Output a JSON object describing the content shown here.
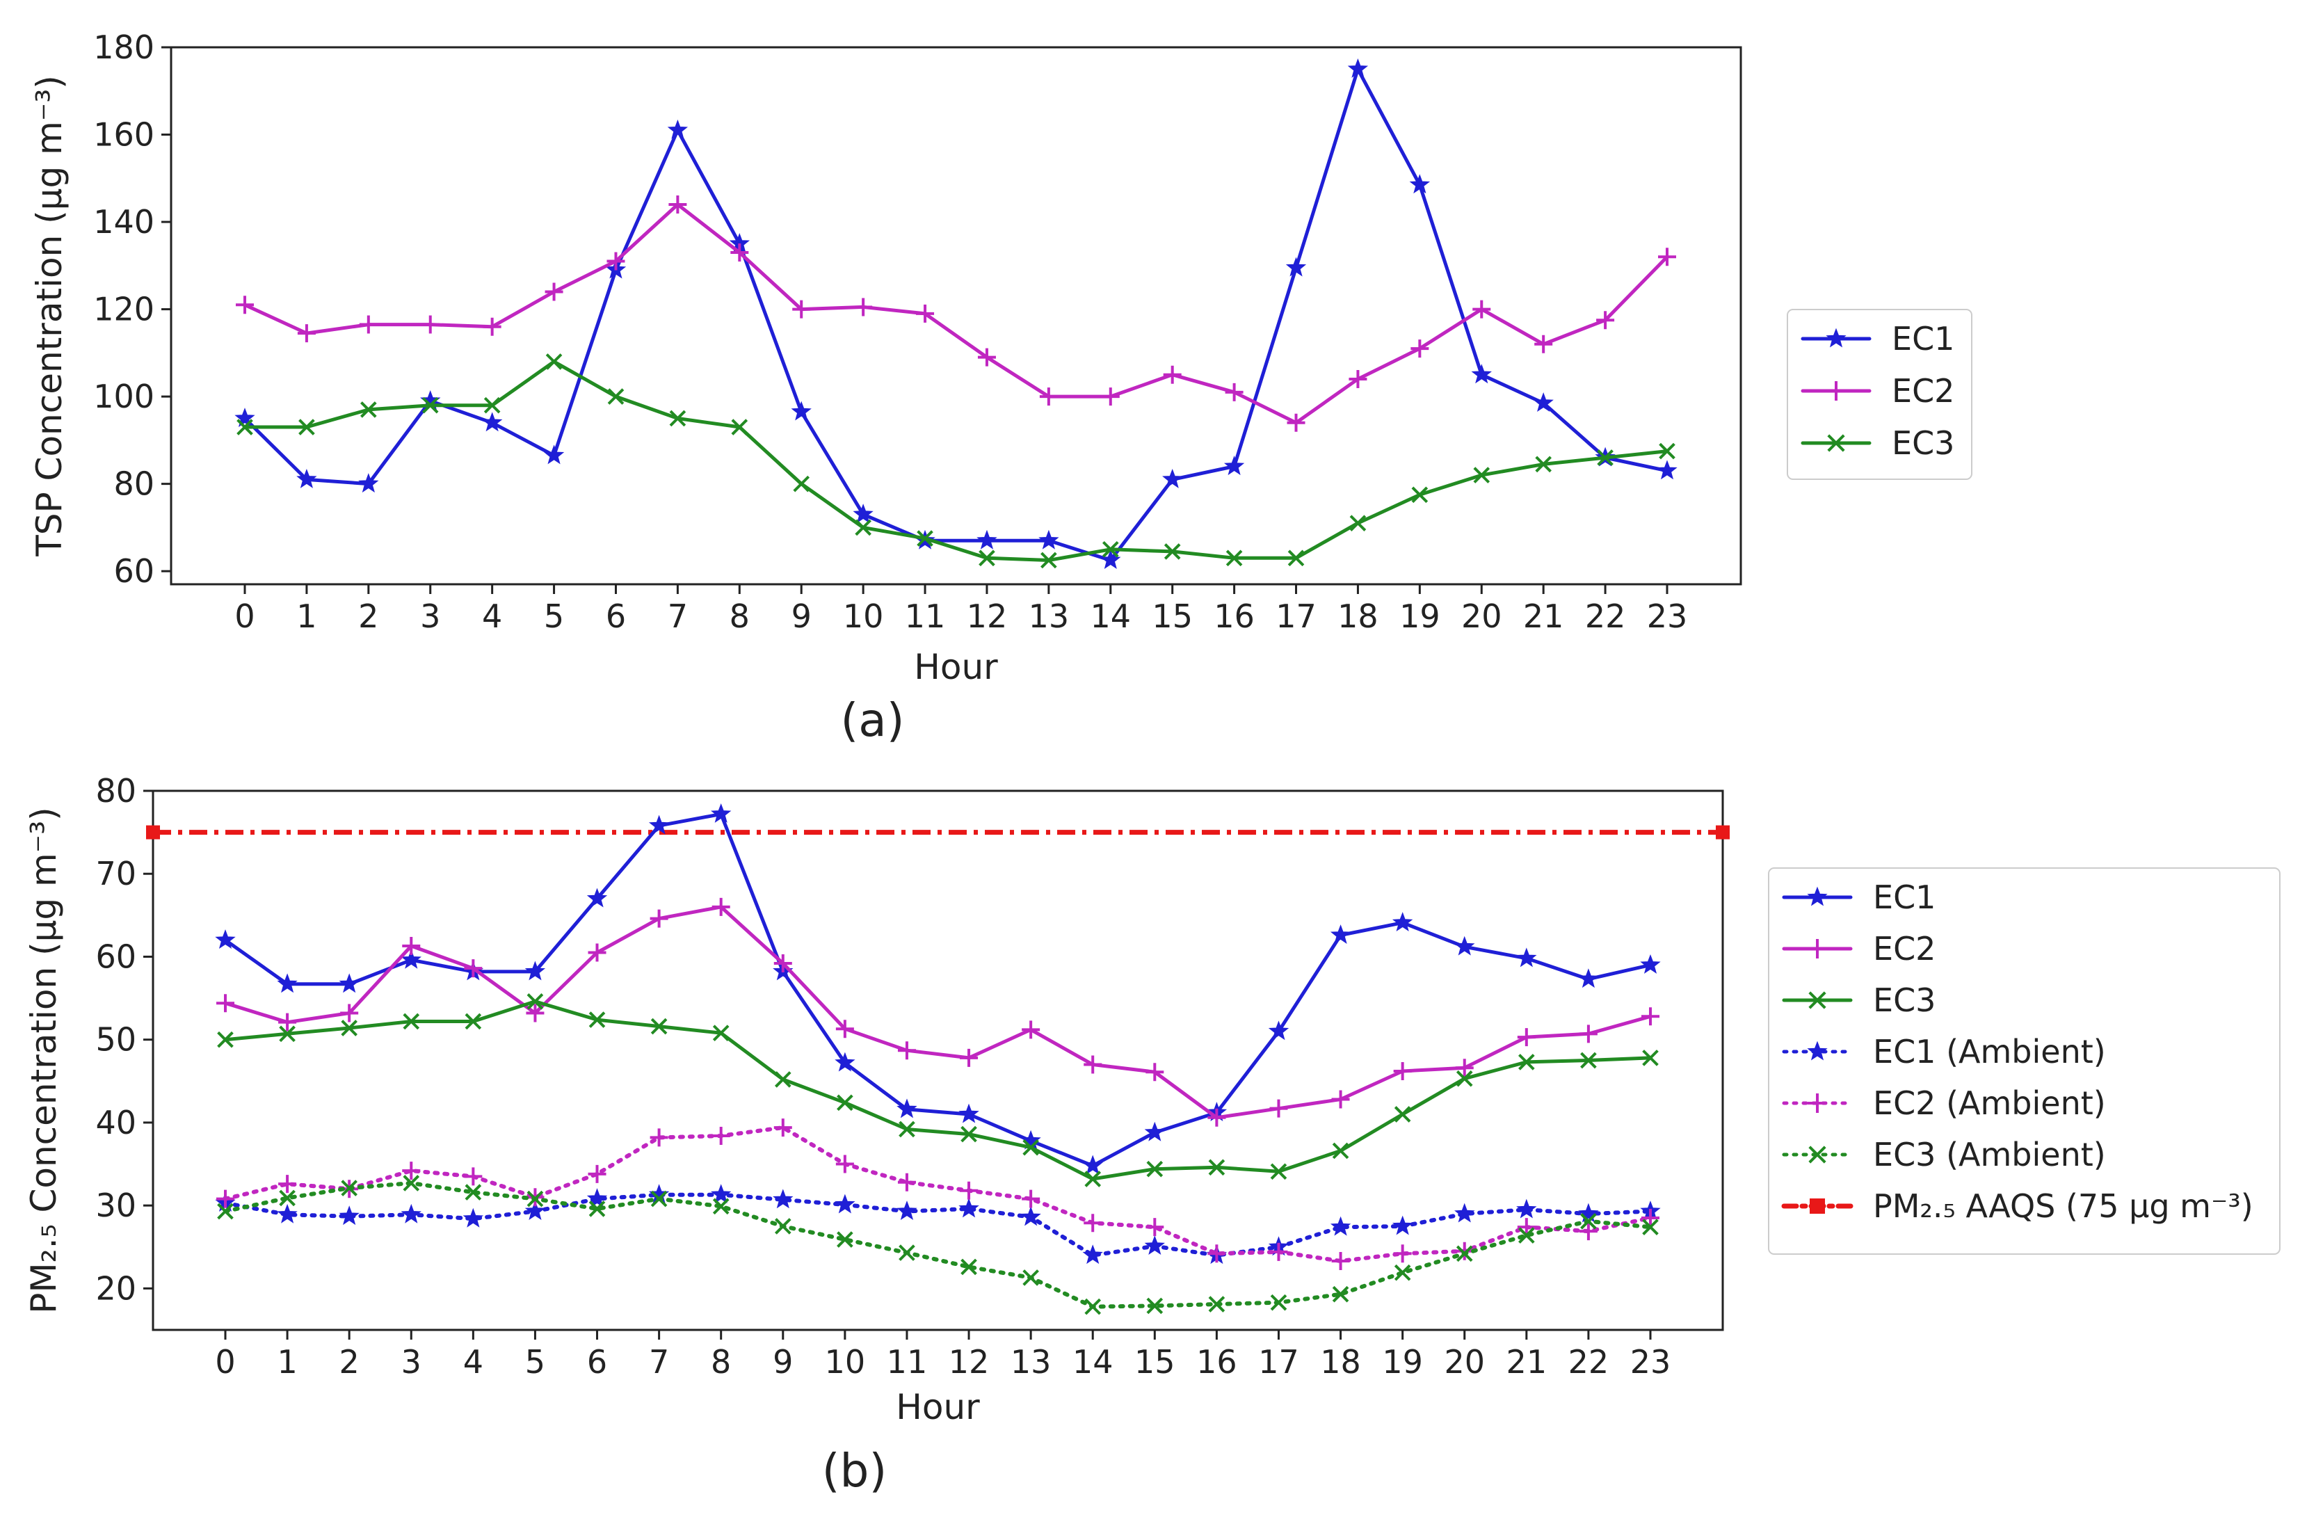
{
  "chart_data": [
    {
      "type": "line",
      "panel_label": "(a)",
      "xlabel": "Hour",
      "ylabel": "TSP Concentration (μg m⁻³)",
      "ylim": [
        57,
        180
      ],
      "yticks": [
        60,
        80,
        100,
        120,
        140,
        160,
        180
      ],
      "x": [
        0,
        1,
        2,
        3,
        4,
        5,
        6,
        7,
        8,
        9,
        10,
        11,
        12,
        13,
        14,
        15,
        16,
        17,
        18,
        19,
        20,
        21,
        22,
        23
      ],
      "legend_position": "right",
      "series": [
        {
          "name": "EC1",
          "color": "#1f1fd6",
          "marker": "star",
          "linestyle": "solid",
          "values": [
            95,
            81,
            80,
            99,
            94,
            86.5,
            129,
            161,
            135,
            96.5,
            73,
            67,
            67,
            67,
            62.5,
            81,
            84,
            129.5,
            175,
            148.5,
            105,
            98.5,
            86,
            83
          ]
        },
        {
          "name": "EC2",
          "color": "#c026c0",
          "marker": "plus",
          "linestyle": "solid",
          "values": [
            121,
            114.5,
            116.5,
            116.5,
            116,
            124,
            131,
            144,
            133,
            120,
            120.5,
            119,
            109,
            100,
            100,
            105,
            101,
            94,
            104,
            111,
            120,
            112,
            117.5,
            132
          ]
        },
        {
          "name": "EC3",
          "color": "#228b22",
          "marker": "x",
          "linestyle": "solid",
          "values": [
            93,
            93,
            97,
            98,
            98,
            108,
            100,
            95,
            93,
            80,
            70,
            67.5,
            63,
            62.5,
            65,
            64.5,
            63,
            63,
            71,
            77.5,
            82,
            84.5,
            86,
            87.5
          ]
        }
      ]
    },
    {
      "type": "line",
      "panel_label": "(b)",
      "xlabel": "Hour",
      "ylabel": "PM₂.₅ Concentration (μg m⁻³)",
      "ylim": [
        15,
        80
      ],
      "yticks": [
        20,
        30,
        40,
        50,
        60,
        70,
        80
      ],
      "x": [
        0,
        1,
        2,
        3,
        4,
        5,
        6,
        7,
        8,
        9,
        10,
        11,
        12,
        13,
        14,
        15,
        16,
        17,
        18,
        19,
        20,
        21,
        22,
        23
      ],
      "legend_position": "right",
      "series": [
        {
          "name": "EC1",
          "color": "#1f1fd6",
          "marker": "star",
          "linestyle": "solid",
          "values": [
            62,
            56.7,
            56.7,
            59.6,
            58.2,
            58.2,
            67,
            75.8,
            77.2,
            58.2,
            47.2,
            41.6,
            41,
            37.8,
            34.8,
            38.8,
            41.2,
            51,
            62.6,
            64.1,
            61.2,
            59.8,
            57.3,
            59
          ]
        },
        {
          "name": "EC2",
          "color": "#c026c0",
          "marker": "plus",
          "linestyle": "solid",
          "values": [
            54.4,
            52.1,
            53.2,
            61.3,
            58.6,
            53.2,
            60.5,
            64.6,
            66,
            59.2,
            51.3,
            48.7,
            47.8,
            51.2,
            47,
            46.1,
            40.6,
            41.7,
            42.8,
            46.2,
            46.6,
            50.3,
            50.7,
            52.8
          ]
        },
        {
          "name": "EC3",
          "color": "#228b22",
          "marker": "x",
          "linestyle": "solid",
          "values": [
            50,
            50.7,
            51.4,
            52.2,
            52.2,
            54.6,
            52.4,
            51.6,
            50.8,
            45.2,
            42.4,
            39.2,
            38.6,
            37,
            33.2,
            34.4,
            34.6,
            34.1,
            36.6,
            41,
            45.3,
            47.3,
            47.5,
            47.8
          ]
        },
        {
          "name": "EC1 (Ambient)",
          "color": "#1f1fd6",
          "marker": "star",
          "linestyle": "dotted",
          "values": [
            30.3,
            28.9,
            28.7,
            28.9,
            28.4,
            29.3,
            30.8,
            31.3,
            31.3,
            30.7,
            30.1,
            29.3,
            29.6,
            28.6,
            24,
            25.1,
            24,
            25,
            27.4,
            27.5,
            29,
            29.5,
            29,
            29.3
          ]
        },
        {
          "name": "EC2 (Ambient)",
          "color": "#c026c0",
          "marker": "plus",
          "linestyle": "dotted",
          "values": [
            30.8,
            32.6,
            32,
            34.2,
            33.5,
            31,
            33.8,
            38.2,
            38.4,
            39.4,
            35,
            32.8,
            31.8,
            30.8,
            27.9,
            27.4,
            24.2,
            24.4,
            23.3,
            24.2,
            24.5,
            27.4,
            26.9,
            28.5
          ]
        },
        {
          "name": "EC3 (Ambient)",
          "color": "#228b22",
          "marker": "x",
          "linestyle": "dotted",
          "values": [
            29.3,
            30.9,
            32.1,
            32.7,
            31.6,
            30.8,
            29.6,
            30.8,
            29.9,
            27.5,
            25.9,
            24.3,
            22.6,
            21.3,
            17.8,
            17.9,
            18.1,
            18.3,
            19.3,
            21.9,
            24.2,
            26.4,
            28.1,
            27.4
          ]
        }
      ],
      "reference_line": {
        "name": "PM₂.₅ AAQS (75 μg m⁻³)",
        "value": 75,
        "color": "#e81818",
        "linestyle": "dashdot",
        "marker": "square"
      }
    }
  ]
}
